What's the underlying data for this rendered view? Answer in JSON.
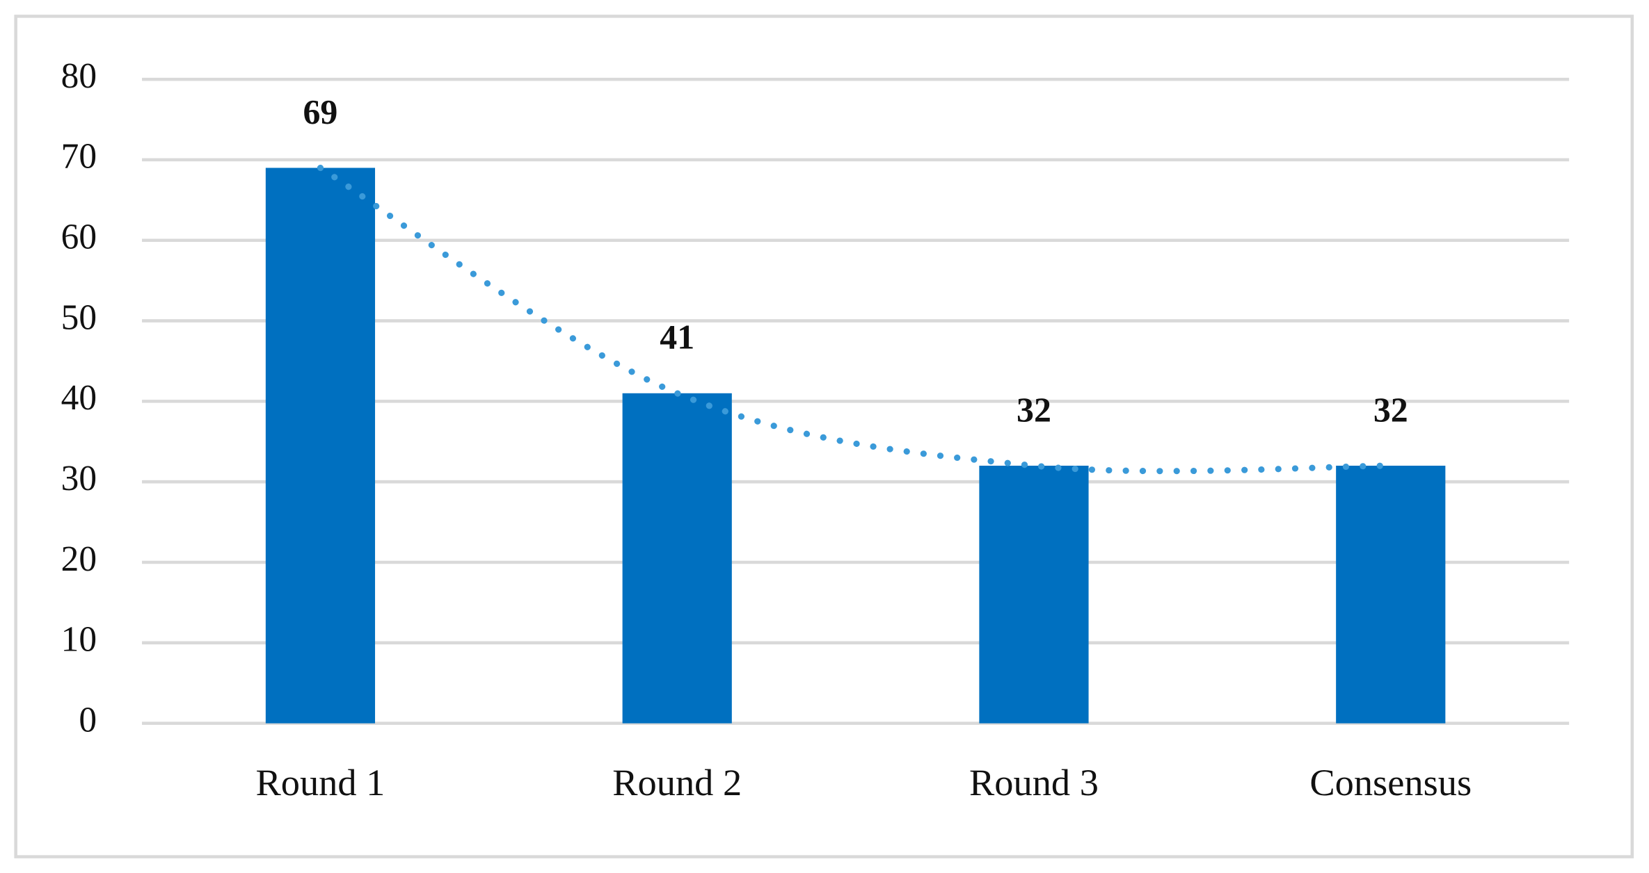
{
  "chart_data": {
    "type": "bar",
    "categories": [
      "Round 1",
      "Round 2",
      "Round 3",
      "Consensus"
    ],
    "values": [
      69,
      41,
      32,
      32
    ],
    "color": "#0070c0",
    "ylim": [
      0,
      80
    ],
    "yticks": [
      0,
      10,
      20,
      30,
      40,
      50,
      60,
      70,
      80
    ],
    "grid": true,
    "trendline": {
      "color": "#3a9ad9",
      "style": "dotted"
    }
  }
}
